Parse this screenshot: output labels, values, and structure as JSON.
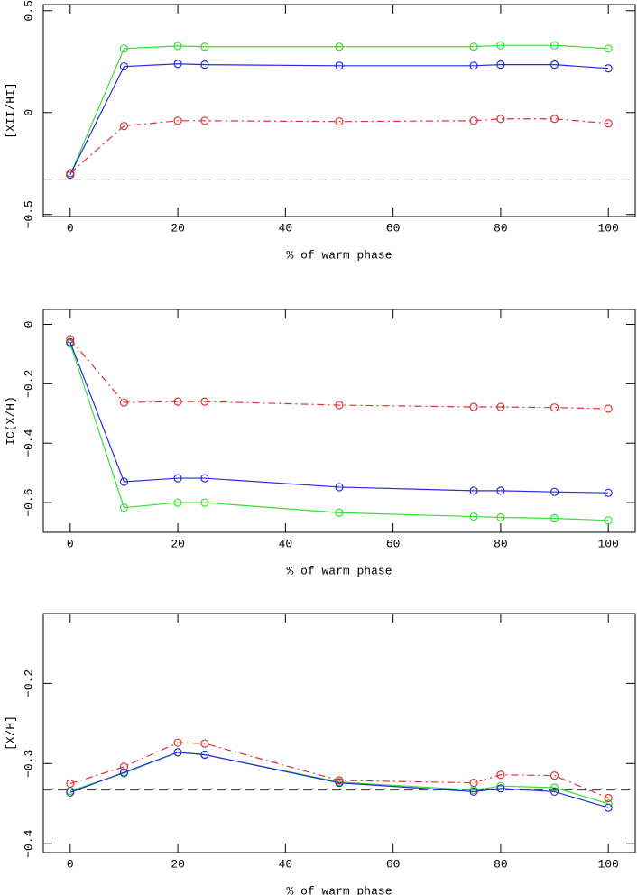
{
  "chart_data": [
    {
      "type": "line",
      "xlabel": "% of warm phase",
      "ylabel": "[XII/HI]",
      "x": [
        0,
        10,
        20,
        25,
        50,
        75,
        80,
        90,
        100
      ],
      "xlim": [
        -5,
        105
      ],
      "xticks": [
        0,
        20,
        40,
        60,
        80,
        100
      ],
      "ylim": [
        -0.51,
        0.53
      ],
      "yticks": [
        {
          "value": -0.5,
          "label": "−0.5"
        },
        0,
        0.5
      ],
      "hline": -0.33,
      "series": [
        {
          "color": "#33e033",
          "dash": "solid",
          "values": [
            -0.305,
            0.314,
            0.327,
            0.323,
            0.323,
            0.323,
            0.33,
            0.33,
            0.314
          ]
        },
        {
          "color": "#2a2ae0",
          "dash": "solid",
          "values": [
            -0.305,
            0.226,
            0.239,
            0.235,
            0.23,
            0.23,
            0.235,
            0.235,
            0.217
          ]
        },
        {
          "color": "#e03333",
          "dash": "dashdot",
          "values": [
            -0.297,
            -0.066,
            -0.04,
            -0.04,
            -0.044,
            -0.04,
            -0.031,
            -0.031,
            -0.053
          ]
        }
      ]
    },
    {
      "type": "line",
      "xlabel": "% of warm phase",
      "ylabel": "IC(X/H)",
      "x": [
        0,
        10,
        20,
        25,
        50,
        75,
        80,
        90,
        100
      ],
      "xlim": [
        -5,
        105
      ],
      "xticks": [
        0,
        20,
        40,
        60,
        80,
        100
      ],
      "ylim": [
        -0.7,
        0.05
      ],
      "yticks": [
        {
          "value": -0.6,
          "label": "−0.6"
        },
        {
          "value": -0.4,
          "label": "−0.4"
        },
        {
          "value": -0.2,
          "label": "−0.2"
        },
        0
      ],
      "series": [
        {
          "color": "#33e033",
          "dash": "solid",
          "values": [
            -0.065,
            -0.617,
            -0.6,
            -0.6,
            -0.634,
            -0.647,
            -0.65,
            -0.653,
            -0.66
          ]
        },
        {
          "color": "#2a2ae0",
          "dash": "solid",
          "values": [
            -0.06,
            -0.53,
            -0.518,
            -0.518,
            -0.548,
            -0.56,
            -0.56,
            -0.564,
            -0.567
          ]
        },
        {
          "color": "#e03333",
          "dash": "dashdot",
          "values": [
            -0.05,
            -0.263,
            -0.26,
            -0.26,
            -0.272,
            -0.278,
            -0.278,
            -0.28,
            -0.284
          ]
        }
      ]
    },
    {
      "type": "line",
      "xlabel": "% of warm phase",
      "ylabel": "[X/H]",
      "x": [
        0,
        10,
        20,
        25,
        50,
        75,
        80,
        90,
        100
      ],
      "xlim": [
        -5,
        105
      ],
      "xticks": [
        0,
        20,
        40,
        60,
        80,
        100
      ],
      "ylim": [
        -0.411,
        -0.113
      ],
      "yticks": [
        {
          "value": -0.4,
          "label": "−0.4"
        },
        {
          "value": -0.3,
          "label": "−0.3"
        },
        {
          "value": -0.2,
          "label": "−0.2"
        }
      ],
      "hline": -0.333,
      "series": [
        {
          "color": "#33e033",
          "dash": "solid",
          "values": [
            -0.334,
            -0.312,
            -0.286,
            -0.289,
            -0.323,
            -0.333,
            -0.328,
            -0.33,
            -0.35
          ]
        },
        {
          "color": "#2a2ae0",
          "dash": "solid",
          "values": [
            -0.336,
            -0.311,
            -0.286,
            -0.289,
            -0.324,
            -0.335,
            -0.331,
            -0.335,
            -0.355
          ]
        },
        {
          "color": "#e03333",
          "dash": "dashdot",
          "values": [
            -0.325,
            -0.304,
            -0.274,
            -0.275,
            -0.321,
            -0.324,
            -0.314,
            -0.315,
            -0.343
          ]
        }
      ]
    }
  ]
}
